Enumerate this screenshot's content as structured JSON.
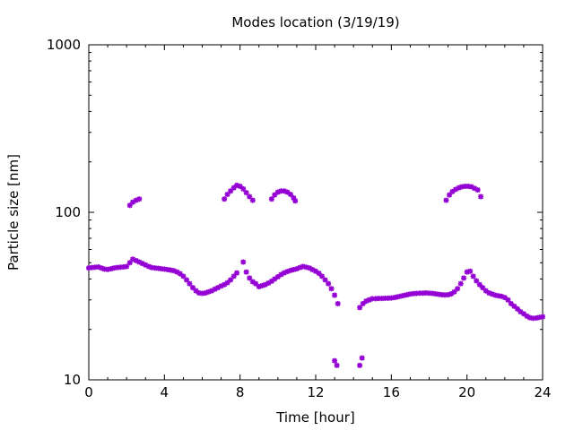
{
  "chart_data": {
    "type": "scatter",
    "title": "Modes location (3/19/19)",
    "xlabel": "Time [hour]",
    "ylabel": "Particle size [nm]",
    "xlim": [
      0,
      24
    ],
    "ylim": [
      10,
      1000
    ],
    "yscale": "log",
    "grid": false,
    "legend": "none",
    "x_ticks": [
      0,
      4,
      8,
      12,
      16,
      20,
      24
    ],
    "x_tick_labels": [
      "0",
      "4",
      "8",
      "12",
      "16",
      "20",
      "24"
    ],
    "y_ticks": [
      10,
      100,
      1000
    ],
    "y_tick_labels": [
      "10",
      "100",
      "1000"
    ],
    "marker_color": "#9400d3",
    "series": [
      {
        "points": [
          [
            0.0,
            46.5
          ],
          [
            0.17,
            46.8
          ],
          [
            0.33,
            47.0
          ],
          [
            0.5,
            47.2
          ],
          [
            0.67,
            46.5
          ],
          [
            0.83,
            45.8
          ],
          [
            1.0,
            45.6
          ],
          [
            1.17,
            46.0
          ],
          [
            1.33,
            46.5
          ],
          [
            1.5,
            46.8
          ],
          [
            1.67,
            47.0
          ],
          [
            1.83,
            47.2
          ],
          [
            2.0,
            47.5
          ],
          [
            2.17,
            50.0
          ],
          [
            2.33,
            52.5
          ],
          [
            2.5,
            51.5
          ],
          [
            2.67,
            50.5
          ],
          [
            2.83,
            49.5
          ],
          [
            3.0,
            48.5
          ],
          [
            3.17,
            47.5
          ],
          [
            3.33,
            46.8
          ],
          [
            3.5,
            46.5
          ],
          [
            3.67,
            46.3
          ],
          [
            3.83,
            46.0
          ],
          [
            4.0,
            45.8
          ],
          [
            4.17,
            45.5
          ],
          [
            4.33,
            45.2
          ],
          [
            4.5,
            44.8
          ],
          [
            4.67,
            44.0
          ],
          [
            4.83,
            43.0
          ],
          [
            5.0,
            41.5
          ],
          [
            5.17,
            39.5
          ],
          [
            5.33,
            37.5
          ],
          [
            5.5,
            35.5
          ],
          [
            5.67,
            34.0
          ],
          [
            5.83,
            33.0
          ],
          [
            6.0,
            32.8
          ],
          [
            6.17,
            33.0
          ],
          [
            6.33,
            33.5
          ],
          [
            6.5,
            34.0
          ],
          [
            6.67,
            34.8
          ],
          [
            6.83,
            35.5
          ],
          [
            7.0,
            36.3
          ],
          [
            7.17,
            37.0
          ],
          [
            7.33,
            38.0
          ],
          [
            7.5,
            39.5
          ],
          [
            7.67,
            41.5
          ],
          [
            7.83,
            43.5
          ],
          [
            8.17,
            50.5
          ],
          [
            8.33,
            44.0
          ],
          [
            8.5,
            40.5
          ],
          [
            8.67,
            38.5
          ],
          [
            8.83,
            37.5
          ],
          [
            9.0,
            36.0
          ],
          [
            9.17,
            36.5
          ],
          [
            9.33,
            37.0
          ],
          [
            9.5,
            37.8
          ],
          [
            9.67,
            38.8
          ],
          [
            9.83,
            40.0
          ],
          [
            10.0,
            41.2
          ],
          [
            10.17,
            42.5
          ],
          [
            10.33,
            43.5
          ],
          [
            10.5,
            44.3
          ],
          [
            10.67,
            45.0
          ],
          [
            10.83,
            45.5
          ],
          [
            11.0,
            46.0
          ],
          [
            11.17,
            46.8
          ],
          [
            11.33,
            47.5
          ],
          [
            11.5,
            47.0
          ],
          [
            11.67,
            46.5
          ],
          [
            11.83,
            45.5
          ],
          [
            12.0,
            44.5
          ],
          [
            12.17,
            43.2
          ],
          [
            12.33,
            41.5
          ],
          [
            12.5,
            39.5
          ],
          [
            12.67,
            37.5
          ],
          [
            12.83,
            35.0
          ],
          [
            13.0,
            32.0
          ],
          [
            13.17,
            28.5
          ],
          [
            14.33,
            27.0
          ],
          [
            14.5,
            28.5
          ],
          [
            14.67,
            29.5
          ],
          [
            14.83,
            30.0
          ],
          [
            15.0,
            30.5
          ],
          [
            15.17,
            30.5
          ],
          [
            15.33,
            30.6
          ],
          [
            15.5,
            30.6
          ],
          [
            15.67,
            30.7
          ],
          [
            15.83,
            30.7
          ],
          [
            16.0,
            30.8
          ],
          [
            16.17,
            31.0
          ],
          [
            16.33,
            31.3
          ],
          [
            16.5,
            31.6
          ],
          [
            16.67,
            31.9
          ],
          [
            16.83,
            32.2
          ],
          [
            17.0,
            32.5
          ],
          [
            17.17,
            32.7
          ],
          [
            17.33,
            32.8
          ],
          [
            17.5,
            32.9
          ],
          [
            17.67,
            32.9
          ],
          [
            17.83,
            33.0
          ],
          [
            18.0,
            32.9
          ],
          [
            18.17,
            32.8
          ],
          [
            18.33,
            32.6
          ],
          [
            18.5,
            32.4
          ],
          [
            18.67,
            32.2
          ],
          [
            18.83,
            32.1
          ],
          [
            19.0,
            32.2
          ],
          [
            19.17,
            32.6
          ],
          [
            19.33,
            33.5
          ],
          [
            19.5,
            35.0
          ],
          [
            19.67,
            37.5
          ],
          [
            19.83,
            40.5
          ],
          [
            20.0,
            44.0
          ],
          [
            20.17,
            44.5
          ],
          [
            20.33,
            41.5
          ],
          [
            20.5,
            39.0
          ],
          [
            20.67,
            37.0
          ],
          [
            20.83,
            35.5
          ],
          [
            21.0,
            34.0
          ],
          [
            21.17,
            33.0
          ],
          [
            21.33,
            32.5
          ],
          [
            21.5,
            32.0
          ],
          [
            21.67,
            31.7
          ],
          [
            21.83,
            31.5
          ],
          [
            22.0,
            31.0
          ],
          [
            22.17,
            30.0
          ],
          [
            22.33,
            28.5
          ],
          [
            22.5,
            27.5
          ],
          [
            22.67,
            26.5
          ],
          [
            22.83,
            25.5
          ],
          [
            23.0,
            24.8
          ],
          [
            23.17,
            24.0
          ],
          [
            23.33,
            23.5
          ],
          [
            23.5,
            23.3
          ],
          [
            23.67,
            23.4
          ],
          [
            23.83,
            23.6
          ],
          [
            24.0,
            23.8
          ],
          [
            2.17,
            110
          ],
          [
            2.33,
            115
          ],
          [
            2.5,
            118
          ],
          [
            2.67,
            120
          ],
          [
            7.17,
            120
          ],
          [
            7.33,
            128
          ],
          [
            7.5,
            134
          ],
          [
            7.67,
            140
          ],
          [
            7.83,
            145
          ],
          [
            8.0,
            143
          ],
          [
            8.17,
            138
          ],
          [
            8.33,
            131
          ],
          [
            8.5,
            124
          ],
          [
            8.67,
            118
          ],
          [
            9.67,
            120
          ],
          [
            9.83,
            127
          ],
          [
            10.0,
            132
          ],
          [
            10.17,
            134
          ],
          [
            10.33,
            134
          ],
          [
            10.5,
            132
          ],
          [
            10.67,
            128
          ],
          [
            10.83,
            122
          ],
          [
            10.92,
            117
          ],
          [
            18.9,
            118
          ],
          [
            19.07,
            127
          ],
          [
            19.23,
            133
          ],
          [
            19.4,
            137
          ],
          [
            19.57,
            140
          ],
          [
            19.73,
            142
          ],
          [
            19.9,
            143
          ],
          [
            20.07,
            143
          ],
          [
            20.23,
            142
          ],
          [
            20.4,
            139
          ],
          [
            20.57,
            136
          ],
          [
            20.73,
            124
          ],
          [
            13.0,
            13.0
          ],
          [
            13.12,
            12.2
          ],
          [
            14.33,
            12.2
          ],
          [
            14.45,
            13.5
          ]
        ]
      }
    ]
  }
}
